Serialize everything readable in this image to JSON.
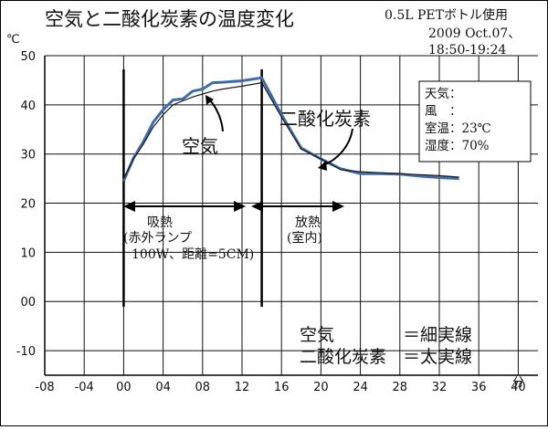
{
  "chart_data": {
    "type": "line",
    "title": "空気と二酸化炭素の温度変化",
    "bottle_note": "0.5L PETボトル使用",
    "date_note": "2009 Oct.07、",
    "time_note": "18:50-19:24",
    "y_unit": "℃",
    "x_unit": "分",
    "xlim": [
      -8,
      42
    ],
    "ylim": [
      -15,
      50
    ],
    "x_ticks": [
      -8,
      -4,
      0,
      4,
      8,
      12,
      16,
      20,
      24,
      28,
      32,
      36,
      40
    ],
    "x_tick_labels": [
      "-08",
      "-04",
      "00",
      "04",
      "08",
      "12",
      "16",
      "20",
      "24",
      "28",
      "32",
      "36",
      "40"
    ],
    "y_ticks": [
      -10,
      0,
      10,
      20,
      30,
      40,
      50
    ],
    "y_tick_labels": [
      "-10",
      "00",
      "10",
      "20",
      "30",
      "40",
      "50"
    ],
    "grid": true,
    "series": [
      {
        "name": "空気",
        "style": "thin",
        "color": "#1a1a1a",
        "x": [
          0,
          1,
          2,
          3,
          4,
          5,
          6,
          7,
          8,
          9,
          10,
          12,
          14,
          16,
          18,
          20,
          22,
          24,
          26,
          28,
          30,
          32,
          34
        ],
        "y": [
          25.0,
          29.0,
          32.0,
          35.5,
          38.0,
          40.0,
          40.8,
          41.6,
          42.2,
          42.8,
          43.2,
          43.8,
          44.5,
          37.5,
          31.0,
          29.0,
          26.8,
          26.4,
          26.2,
          26.0,
          25.8,
          25.6,
          25.3
        ]
      },
      {
        "name": "二酸化炭素",
        "style": "thick",
        "color": "#3f6ca8",
        "x": [
          0,
          1,
          2,
          3,
          4,
          5,
          6,
          7,
          8,
          9,
          10,
          12,
          14,
          16,
          18,
          20,
          22,
          24,
          26,
          28,
          30,
          32,
          34
        ],
        "y": [
          24.5,
          29.2,
          32.5,
          36.5,
          39.0,
          41.0,
          41.2,
          42.8,
          43.2,
          44.5,
          44.6,
          44.9,
          45.5,
          38.0,
          31.2,
          29.0,
          27.0,
          26.0,
          26.0,
          25.9,
          25.5,
          25.2,
          25.0
        ]
      }
    ],
    "markers": [
      0,
      14
    ],
    "annotations": {
      "air_label": "空気",
      "co2_label": "二酸化炭素",
      "absorb_label": "吸熱",
      "absorb_detail_1": "(赤外ランプ",
      "absorb_detail_2": "100W、距離=5CM)",
      "release_label": "放熱",
      "release_detail": "(室内)"
    },
    "weather": {
      "label_weather": "天気：",
      "label_wind": "風　：",
      "label_room_temp": "室温：23℃",
      "label_humidity": "湿度：70%"
    },
    "legend": {
      "line1_name": "空気",
      "line1_desc": "＝細実線",
      "line2_name": "二酸化炭素",
      "line2_desc": "＝太実線"
    }
  }
}
